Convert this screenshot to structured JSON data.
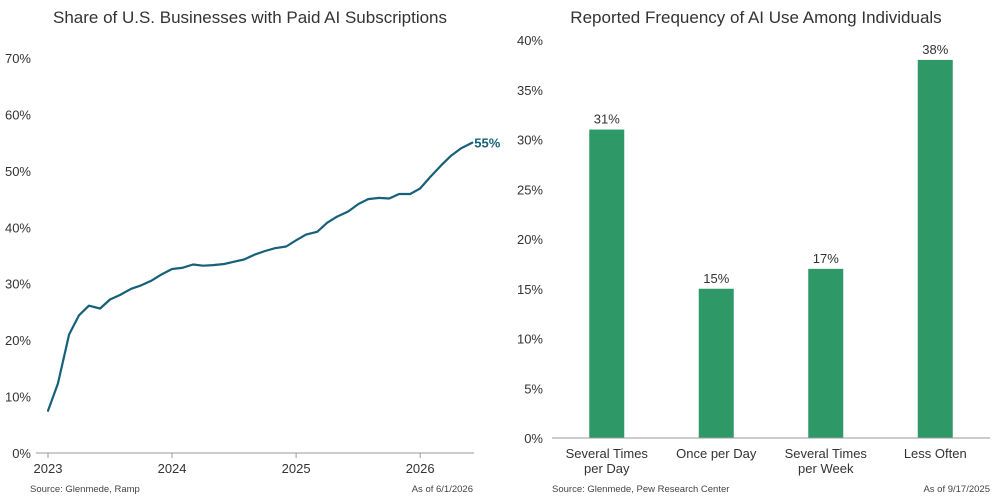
{
  "colors": {
    "line": "#17607a",
    "bar": "#2e9966",
    "axis": "#9a9a9a",
    "text": "#333333"
  },
  "chart_data": [
    {
      "type": "line",
      "title": "Share of U.S. Businesses with Paid AI Subscriptions",
      "xlabel": "",
      "ylabel": "",
      "xlim": [
        2023,
        2026.45
      ],
      "ylim": [
        0,
        70
      ],
      "xticks": [
        2023,
        2024,
        2025,
        2026
      ],
      "xtick_labels": [
        "2023",
        "2024",
        "2025",
        "2026"
      ],
      "yticks": [
        0,
        10,
        20,
        30,
        40,
        50,
        60,
        70
      ],
      "ytick_labels": [
        "0%",
        "10%",
        "20%",
        "30%",
        "40%",
        "50%",
        "60%",
        "70%"
      ],
      "grid": false,
      "series": [
        {
          "x": [
            2023.0,
            2023.08,
            2023.17,
            2023.25,
            2023.33,
            2023.42,
            2023.5,
            2023.58,
            2023.67,
            2023.75,
            2023.83,
            2023.92,
            2024.0,
            2024.08,
            2024.17,
            2024.25,
            2024.33,
            2024.42,
            2024.5,
            2024.58,
            2024.67,
            2024.75,
            2024.83,
            2024.92,
            2025.0,
            2025.08,
            2025.17,
            2025.25,
            2025.33,
            2025.42,
            2025.5,
            2025.58,
            2025.67,
            2025.75,
            2025.83,
            2025.92,
            2026.0,
            2026.08,
            2026.17,
            2026.25,
            2026.33,
            2026.42
          ],
          "values": [
            7.5,
            12.3,
            21.0,
            24.4,
            26.1,
            25.6,
            27.2,
            28.0,
            29.1,
            29.7,
            30.5,
            31.7,
            32.6,
            32.8,
            33.4,
            33.2,
            33.3,
            33.5,
            33.9,
            34.3,
            35.2,
            35.8,
            36.3,
            36.6,
            37.7,
            38.7,
            39.2,
            40.8,
            41.9,
            42.8,
            44.1,
            45.0,
            45.2,
            45.1,
            45.9,
            45.9,
            46.9,
            48.9,
            51.0,
            52.7,
            54.0,
            55.0
          ]
        }
      ],
      "end_label": "55%",
      "source": "Source: Glenmede, Ramp",
      "as_of": "As of 6/1/2026"
    },
    {
      "type": "bar",
      "title": "Reported Frequency of AI Use Among Individuals",
      "xlabel": "",
      "ylabel": "",
      "categories": [
        [
          "Several Times",
          "per Day"
        ],
        [
          "Once per Day"
        ],
        [
          "Several Times",
          "per Week"
        ],
        [
          "Less Often"
        ]
      ],
      "values": [
        31,
        15,
        17,
        38
      ],
      "data_labels": [
        "31%",
        "15%",
        "17%",
        "38%"
      ],
      "ylim": [
        0,
        40
      ],
      "yticks": [
        0,
        5,
        10,
        15,
        20,
        25,
        30,
        35,
        40
      ],
      "ytick_labels": [
        "0%",
        "5%",
        "10%",
        "15%",
        "20%",
        "25%",
        "30%",
        "35%",
        "40%"
      ],
      "grid": false,
      "source": "Source: Glenmede, Pew Research Center",
      "as_of": "As of 9/17/2025"
    }
  ]
}
